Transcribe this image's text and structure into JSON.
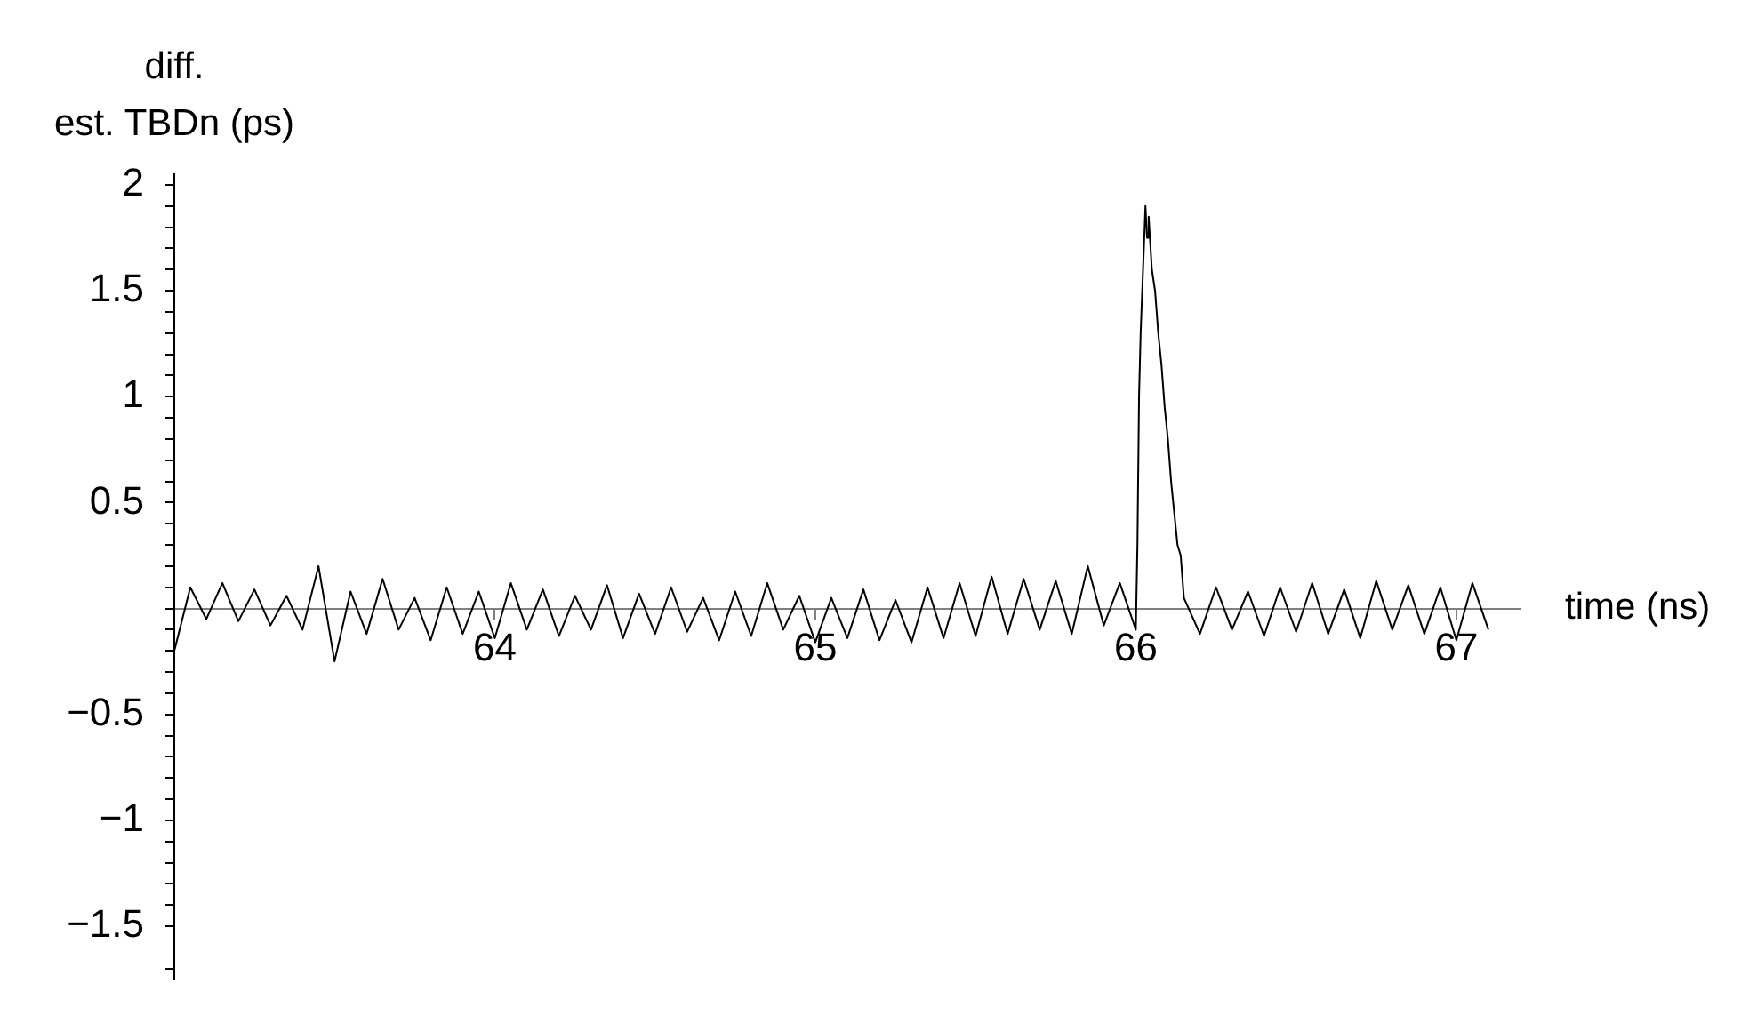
{
  "chart_data": {
    "type": "line",
    "xlabel": "time (ns)",
    "ylabel": "diff.\nest. TBDn (ps)",
    "xlim": [
      63,
      67.2
    ],
    "xticks": [
      64,
      65,
      66,
      67
    ],
    "ylim": [
      -1.75,
      2.05
    ],
    "yticks": [
      {
        "value": -1.7,
        "label": null
      },
      -1.5,
      {
        "value": -1.4,
        "label": null
      },
      {
        "value": -1.3,
        "label": null
      },
      {
        "value": -1.2,
        "label": null
      },
      {
        "value": -1.1,
        "label": null
      },
      -1,
      {
        "value": -0.9,
        "label": null
      },
      {
        "value": -0.8,
        "label": null
      },
      {
        "value": -0.7,
        "label": null
      },
      {
        "value": -0.6,
        "label": null
      },
      -0.5,
      {
        "value": -0.4,
        "label": null
      },
      {
        "value": -0.3,
        "label": null
      },
      {
        "value": -0.2,
        "label": null
      },
      {
        "value": -0.1,
        "label": null
      },
      {
        "value": 0,
        "label": null
      },
      {
        "value": 0.1,
        "label": null
      },
      {
        "value": 0.2,
        "label": null
      },
      {
        "value": 0.3,
        "label": null
      },
      {
        "value": 0.4,
        "label": null
      },
      0.5,
      {
        "value": 0.6,
        "label": null
      },
      {
        "value": 0.7,
        "label": null
      },
      {
        "value": 0.8,
        "label": null
      },
      {
        "value": 0.9,
        "label": null
      },
      1,
      {
        "value": 1.1,
        "label": null
      },
      {
        "value": 1.2,
        "label": null
      },
      {
        "value": 1.3,
        "label": null
      },
      {
        "value": 1.4,
        "label": null
      },
      1.5,
      {
        "value": 1.6,
        "label": null
      },
      {
        "value": 1.7,
        "label": null
      },
      {
        "value": 1.8,
        "label": null
      },
      {
        "value": 1.9,
        "label": null
      },
      2
    ],
    "grid": false,
    "legend": false,
    "marker": "none",
    "line_style": "solid",
    "series": [
      {
        "color": "#000000",
        "x": [
          63.0,
          63.05,
          63.1,
          63.15,
          63.2,
          63.25,
          63.3,
          63.35,
          63.4,
          63.45,
          63.5,
          63.55,
          63.6,
          63.65,
          63.7,
          63.75,
          63.8,
          63.85,
          63.9,
          63.95,
          64.0,
          64.05,
          64.1,
          64.15,
          64.2,
          64.25,
          64.3,
          64.35,
          64.4,
          64.45,
          64.5,
          64.55,
          64.6,
          64.65,
          64.7,
          64.75,
          64.8,
          64.85,
          64.9,
          64.95,
          65.0,
          65.05,
          65.1,
          65.15,
          65.2,
          65.25,
          65.3,
          65.35,
          65.4,
          65.45,
          65.5,
          65.55,
          65.6,
          65.65,
          65.7,
          65.75,
          65.8,
          65.85,
          65.9,
          65.95,
          66.0,
          66.005,
          66.01,
          66.015,
          66.02,
          66.03,
          66.035,
          66.04,
          66.05,
          66.06,
          66.07,
          66.08,
          66.09,
          66.1,
          66.11,
          66.12,
          66.13,
          66.14,
          66.15,
          66.2,
          66.25,
          66.3,
          66.35,
          66.4,
          66.45,
          66.5,
          66.55,
          66.6,
          66.65,
          66.7,
          66.75,
          66.8,
          66.85,
          66.9,
          66.95,
          67.0,
          67.05,
          67.1
        ],
        "values": [
          -0.2,
          0.1,
          -0.05,
          0.12,
          -0.06,
          0.09,
          -0.08,
          0.06,
          -0.1,
          0.2,
          -0.25,
          0.08,
          -0.12,
          0.14,
          -0.1,
          0.05,
          -0.15,
          0.1,
          -0.12,
          0.08,
          -0.14,
          0.12,
          -0.1,
          0.09,
          -0.13,
          0.06,
          -0.1,
          0.11,
          -0.14,
          0.07,
          -0.12,
          0.1,
          -0.11,
          0.05,
          -0.15,
          0.08,
          -0.13,
          0.12,
          -0.1,
          0.06,
          -0.16,
          0.05,
          -0.14,
          0.09,
          -0.15,
          0.04,
          -0.16,
          0.1,
          -0.14,
          0.12,
          -0.13,
          0.15,
          -0.12,
          0.14,
          -0.1,
          0.13,
          -0.12,
          0.2,
          -0.08,
          0.12,
          -0.1,
          0.3,
          1.0,
          1.3,
          1.5,
          1.9,
          1.75,
          1.85,
          1.6,
          1.5,
          1.3,
          1.15,
          0.95,
          0.8,
          0.6,
          0.45,
          0.3,
          0.25,
          0.05,
          -0.12,
          0.1,
          -0.1,
          0.08,
          -0.13,
          0.1,
          -0.11,
          0.12,
          -0.12,
          0.09,
          -0.14,
          0.13,
          -0.1,
          0.11,
          -0.12,
          0.1,
          -0.15,
          0.12,
          -0.1
        ]
      }
    ]
  }
}
